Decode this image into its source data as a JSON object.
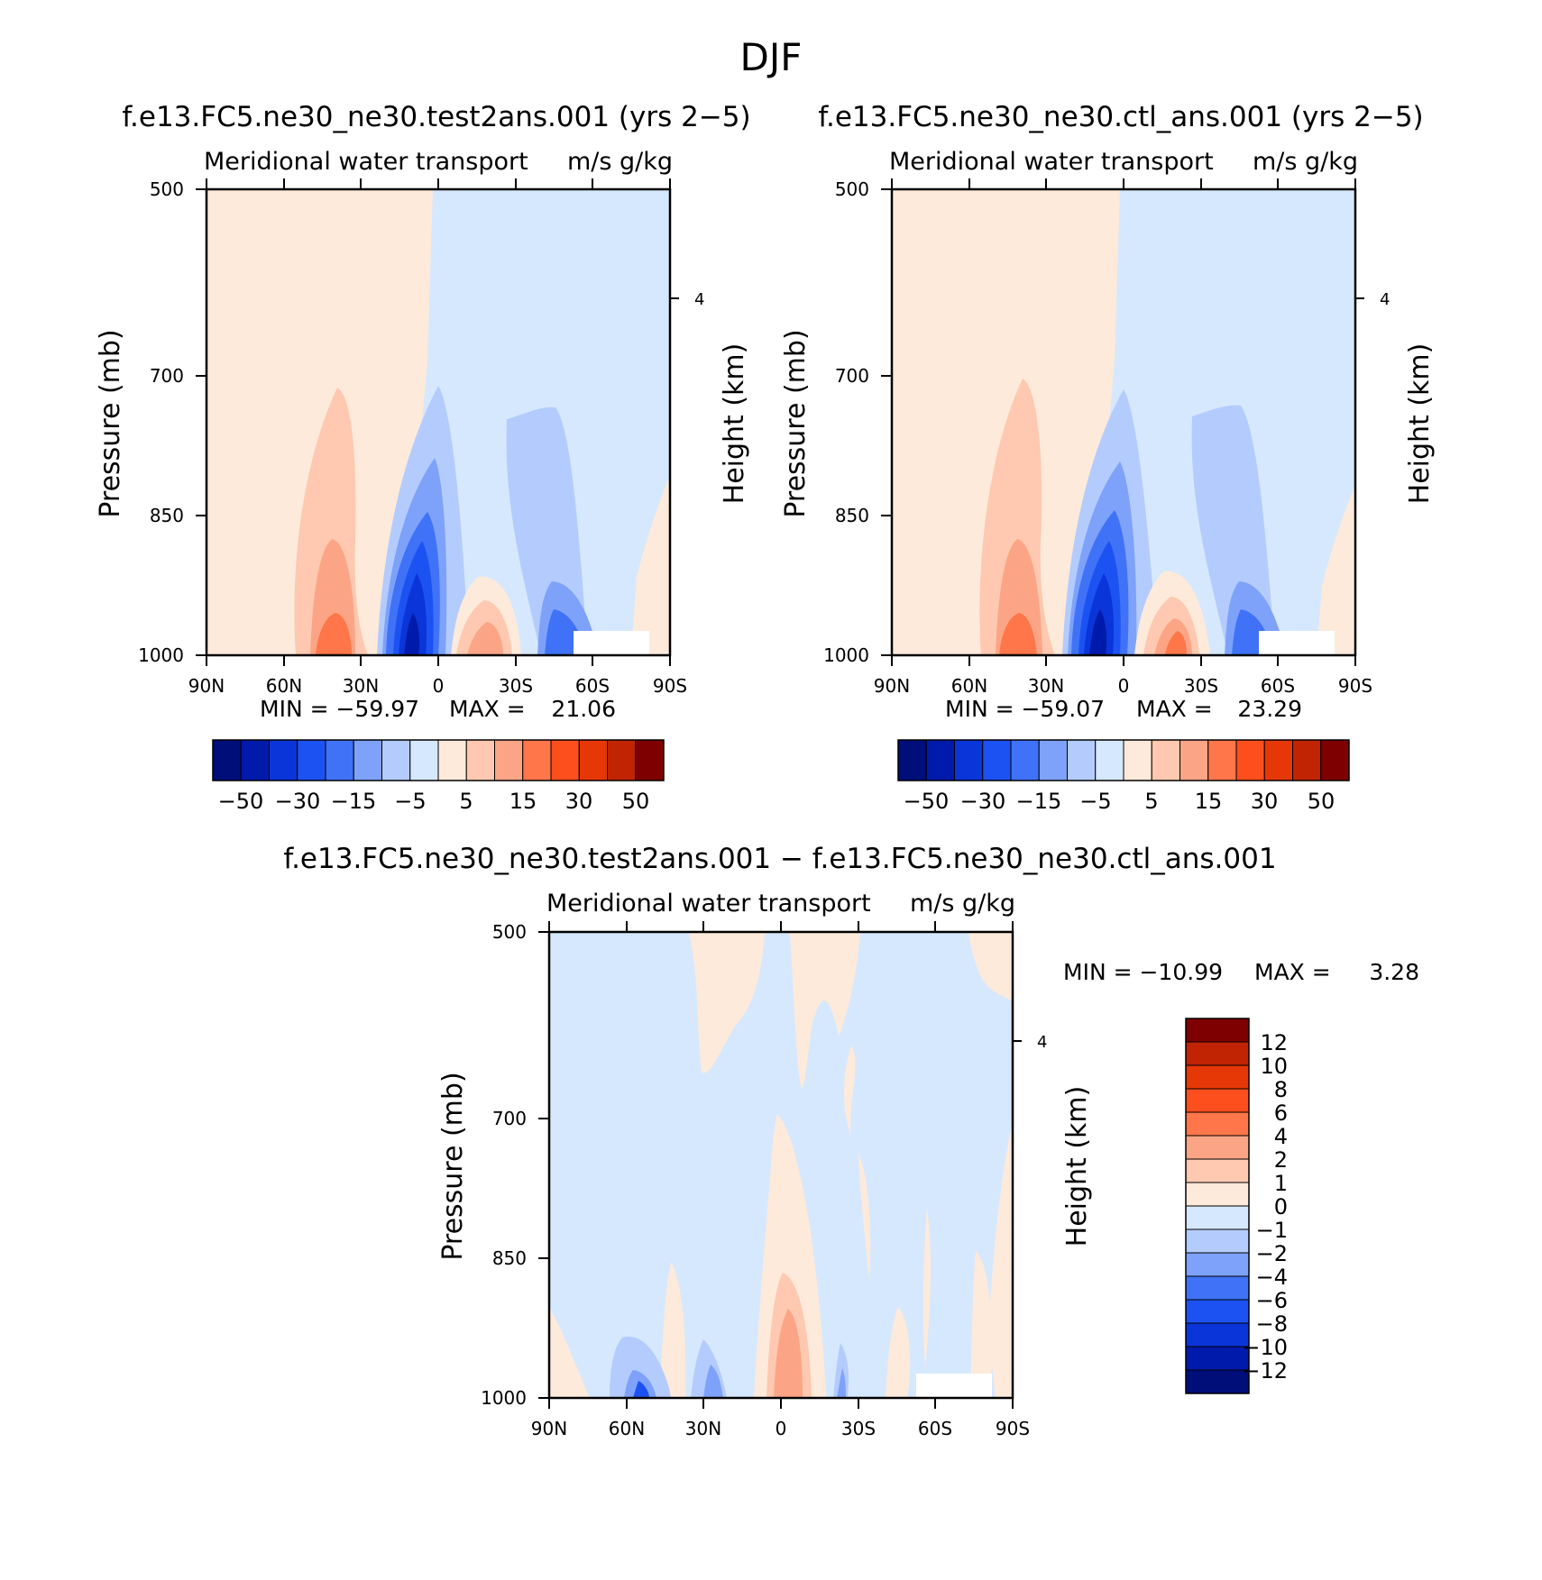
{
  "figure_title": "DJF",
  "colors": {
    "full_fields": [
      "#000e7a",
      "#001bab",
      "#0a35d8",
      "#1d52f2",
      "#3f72f7",
      "#7ea2fa",
      "#b4ccfd",
      "#d6e8fd",
      "#feeadb",
      "#fec9b0",
      "#fca586",
      "#fe7649",
      "#fd4e1e",
      "#e63706",
      "#c12402",
      "#7f0000"
    ],
    "difference": [
      "#000e7a",
      "#001bab",
      "#0a35d8",
      "#1d52f2",
      "#3f72f7",
      "#7ea2fa",
      "#b4ccfd",
      "#d6e8fd",
      "#feeadb",
      "#fec9b0",
      "#fca586",
      "#fe7649",
      "#fd4e1e",
      "#e63706",
      "#c12402",
      "#7f0000"
    ]
  },
  "chart_data": [
    {
      "type": "heatmap",
      "title": "f.e13.FC5.ne30_ne30.test2ans.001 (yrs 2−5)",
      "subtitle_left": "Meridional water transport",
      "subtitle_right": "m/s g/kg",
      "ylabel": "Pressure (mb)",
      "ylabel_right": "Height (km)",
      "xticks": [
        "90N",
        "60N",
        "30N",
        "0",
        "30S",
        "60S",
        "90S"
      ],
      "yticks": [
        "500",
        "700",
        "850",
        "1000"
      ],
      "yticks_right": [
        "4"
      ],
      "min_label": "MIN = −59.97",
      "max_label": "MAX =",
      "max_value": "21.06",
      "colorbar_labels": [
        "−50",
        "−30",
        "−15",
        "−5",
        "5",
        "15",
        "30",
        "50"
      ]
    },
    {
      "type": "heatmap",
      "title": "f.e13.FC5.ne30_ne30.ctl_ans.001 (yrs 2−5)",
      "subtitle_left": "Meridional water transport",
      "subtitle_right": "m/s g/kg",
      "ylabel": "Pressure (mb)",
      "ylabel_right": "Height (km)",
      "xticks": [
        "90N",
        "60N",
        "30N",
        "0",
        "30S",
        "60S",
        "90S"
      ],
      "yticks": [
        "500",
        "700",
        "850",
        "1000"
      ],
      "yticks_right": [
        "4"
      ],
      "min_label": "MIN = −59.07",
      "max_label": "MAX =",
      "max_value": "23.29",
      "colorbar_labels": [
        "−50",
        "−30",
        "−15",
        "−5",
        "5",
        "15",
        "30",
        "50"
      ]
    },
    {
      "type": "heatmap",
      "title": "f.e13.FC5.ne30_ne30.test2ans.001 − f.e13.FC5.ne30_ne30.ctl_ans.001",
      "subtitle_left": "Meridional water transport",
      "subtitle_right": "m/s g/kg",
      "ylabel": "Pressure (mb)",
      "ylabel_right": "Height (km)",
      "xticks": [
        "90N",
        "60N",
        "30N",
        "0",
        "30S",
        "60S",
        "90S"
      ],
      "yticks": [
        "500",
        "700",
        "850",
        "1000"
      ],
      "yticks_right": [
        "4"
      ],
      "min_label": "MIN = −10.99",
      "max_label": "MAX =",
      "max_value": "3.28",
      "colorbar_labels": [
        "12",
        "10",
        "8",
        "6",
        "4",
        "2",
        "1",
        "0",
        "−1",
        "−2",
        "−4",
        "−6",
        "−8",
        "−10",
        "−12"
      ]
    }
  ]
}
